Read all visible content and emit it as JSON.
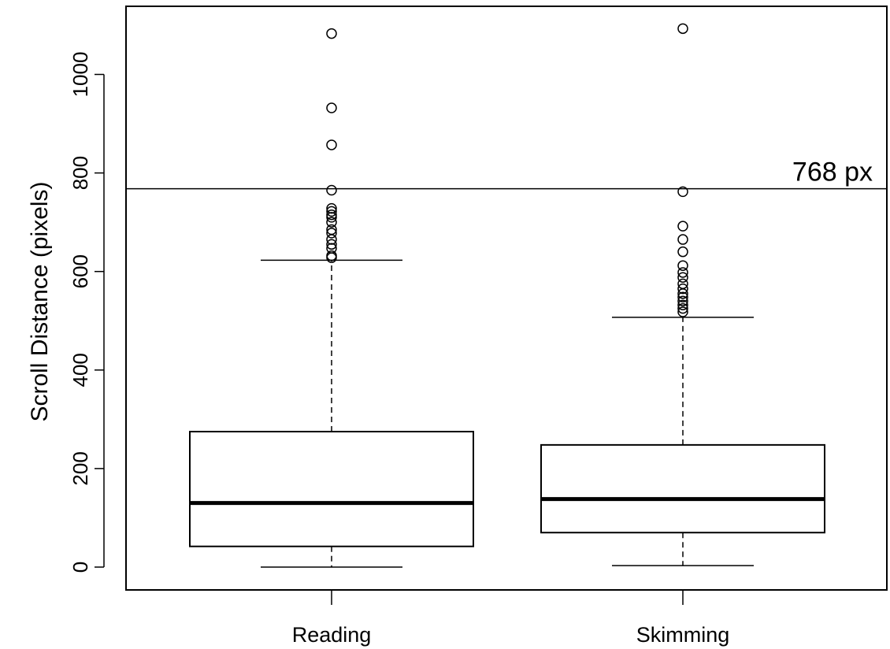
{
  "chart_data": {
    "type": "boxplot",
    "title": "",
    "xlabel": "",
    "ylabel": "Scroll Distance (pixels)",
    "ylim": [
      -50,
      1130
    ],
    "yticks": [
      0,
      200,
      400,
      600,
      800,
      1000
    ],
    "ytick_labels": [
      "0",
      "200",
      "400",
      "600",
      "800",
      "1000"
    ],
    "grid": false,
    "reference_line": {
      "y": 768,
      "label": "768 px"
    },
    "categories": [
      "Reading",
      "Skimming"
    ],
    "boxes": [
      {
        "category": "Reading",
        "whisker_low": 0,
        "q1": 42,
        "median": 130,
        "q3": 275,
        "whisker_high": 623,
        "outliers": [
          628,
          632,
          647,
          655,
          665,
          678,
          685,
          700,
          710,
          715,
          722,
          728,
          765,
          857,
          932,
          1083
        ]
      },
      {
        "category": "Skimming",
        "whisker_low": 3,
        "q1": 70,
        "median": 138,
        "q3": 248,
        "whisker_high": 507,
        "outliers": [
          518,
          525,
          532,
          540,
          548,
          555,
          565,
          575,
          588,
          598,
          612,
          640,
          665,
          692,
          762,
          1093
        ]
      }
    ]
  }
}
